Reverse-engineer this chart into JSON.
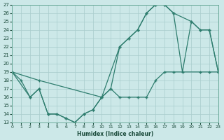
{
  "xlabel": "Humidex (Indice chaleur)",
  "bg_color": "#cce8e8",
  "line_color": "#2e7d6e",
  "grid_color": "#a8cccc",
  "xlim": [
    0,
    23
  ],
  "ylim": [
    13,
    27
  ],
  "xticks": [
    0,
    1,
    2,
    3,
    4,
    5,
    6,
    7,
    8,
    9,
    10,
    11,
    12,
    13,
    14,
    15,
    16,
    17,
    18,
    19,
    20,
    21,
    22,
    23
  ],
  "yticks": [
    13,
    14,
    15,
    16,
    17,
    18,
    19,
    20,
    21,
    22,
    23,
    24,
    25,
    26,
    27
  ],
  "line1_x": [
    0,
    1,
    2,
    3,
    4,
    5,
    6,
    7,
    8,
    9,
    10,
    11,
    12,
    13,
    14,
    15,
    16,
    17,
    18,
    19,
    20,
    21,
    22,
    23
  ],
  "line1_y": [
    19,
    18,
    16,
    17,
    14,
    14,
    13.5,
    13,
    14,
    14.5,
    16,
    17,
    22,
    23,
    24,
    26,
    27,
    27,
    26,
    19,
    25,
    24,
    24,
    19
  ],
  "line2_x": [
    0,
    3,
    10,
    12,
    13,
    14,
    15,
    16,
    17,
    18,
    20,
    21,
    22,
    23
  ],
  "line2_y": [
    19,
    18,
    16,
    22,
    23,
    24,
    26,
    27,
    27,
    26,
    25,
    24,
    24,
    19
  ],
  "line3_x": [
    0,
    2,
    3,
    4,
    5,
    6,
    7,
    8,
    9,
    10,
    11,
    12,
    13,
    14,
    15,
    16,
    17,
    18,
    21,
    22,
    23
  ],
  "line3_y": [
    19,
    16,
    17,
    14,
    14,
    13.5,
    13,
    14,
    14.5,
    16,
    17,
    16,
    16,
    16,
    16,
    18,
    19,
    19,
    19,
    19,
    19
  ]
}
